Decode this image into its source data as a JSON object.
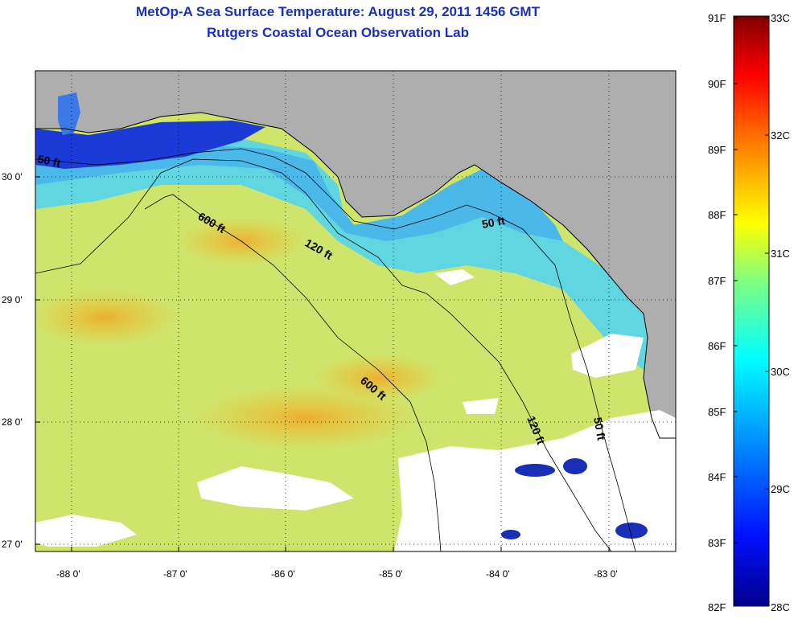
{
  "title": {
    "line1": "MetOp-A Sea Surface Temperature:  August 29, 2011 1456 GMT",
    "line2": "Rutgers Coastal Ocean Observation Lab"
  },
  "map": {
    "lon_ticks": [
      "-88 0'",
      "-87 0'",
      "-86 0'",
      "-85 0'",
      "-84 0'",
      "-83 0'"
    ],
    "lat_ticks": [
      "30 0'",
      "29 0'",
      "28 0'",
      "27 0'"
    ],
    "contours": [
      {
        "label": "50 ft"
      },
      {
        "label": "600 ft"
      },
      {
        "label": "120 ft"
      },
      {
        "label": "50 ft"
      },
      {
        "label": "600 ft"
      },
      {
        "label": "120 ft"
      },
      {
        "label": "50 ft"
      }
    ],
    "colors": {
      "land": "#aeaeae",
      "cloud": "#ffffff",
      "nearshore": "#1a3fd0",
      "shelf": "#4ad1e8",
      "offshore": "#c9e86a",
      "warm": "#f0c22a"
    }
  },
  "colorbar": {
    "fahrenheit": [
      "91F",
      "90F",
      "89F",
      "88F",
      "87F",
      "86F",
      "85F",
      "84F",
      "83F",
      "82F"
    ],
    "celsius": [
      "33C",
      "32C",
      "31C",
      "30C",
      "29C",
      "28C"
    ],
    "range_f": [
      82,
      91
    ],
    "range_c": [
      28,
      33
    ]
  }
}
